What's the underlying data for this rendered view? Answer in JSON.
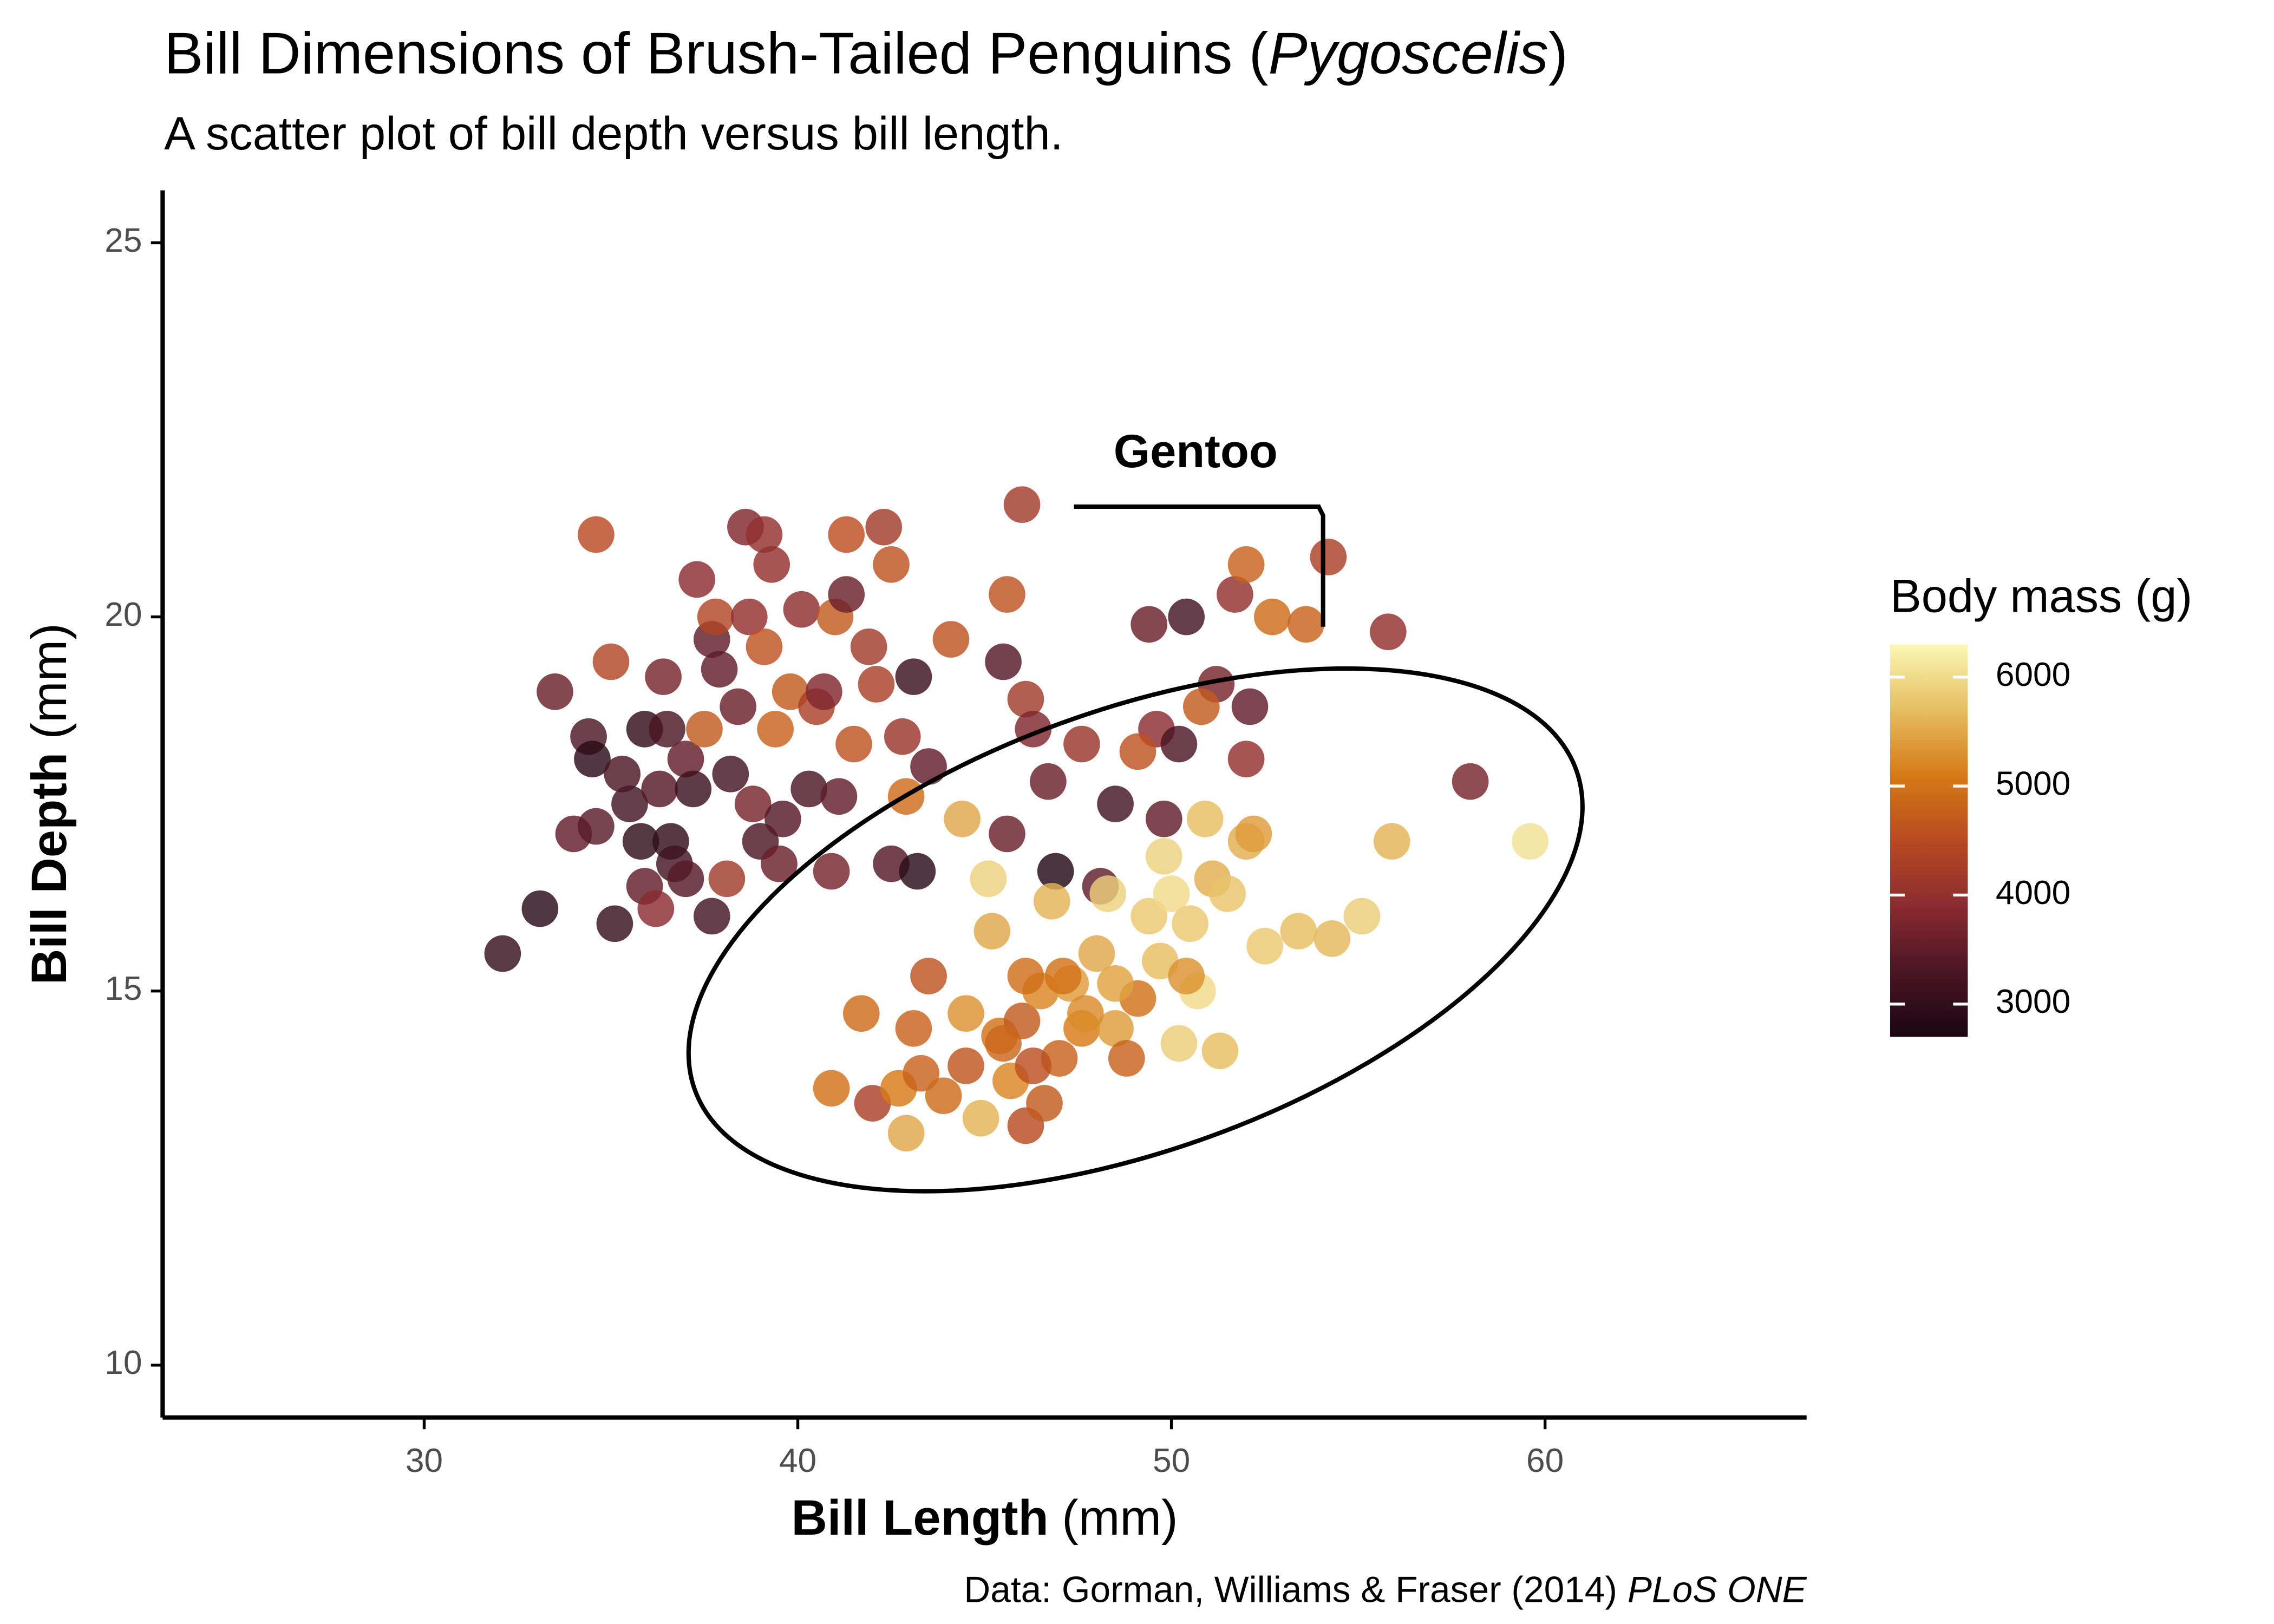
{
  "chart_data": {
    "type": "scatter",
    "title": {
      "text": "Bill Dimensions of Brush-Tailed Penguins (",
      "italic": "Pygoscelis",
      "end": ")"
    },
    "subtitle": "A scatter plot of bill depth versus bill length.",
    "x_label": {
      "bold": "Bill Length",
      "normal": "(mm)"
    },
    "y_label": {
      "bold": "Bill Depth",
      "normal": "(mm)"
    },
    "caption": {
      "text": "Data: Gorman, Williams & Fraser (2014)",
      "italic": "PLoS ONE"
    },
    "annotation": "Gentoo",
    "xlim": [
      23,
      67
    ],
    "ylim": [
      9.3,
      25.7
    ],
    "xticks": [
      30,
      40,
      50,
      60
    ],
    "yticks": [
      10,
      15,
      20,
      25
    ],
    "color_scale": {
      "title": "Body mass (g)",
      "lim": [
        2700,
        6300
      ],
      "ticks": [
        3000,
        4000,
        5000,
        6000
      ],
      "colors": [
        "#1a0610",
        "#4a1525",
        "#8a2b30",
        "#b84a22",
        "#d77a16",
        "#e6be62",
        "#fbf8b4"
      ]
    },
    "x": [
      32.1,
      33.1,
      33.5,
      34.6,
      34.0,
      34.6,
      34.4,
      34.5,
      35.0,
      35.1,
      35.5,
      35.3,
      35.9,
      35.8,
      35.9,
      36.2,
      36.3,
      36.4,
      36.5,
      36.6,
      36.7,
      37.0,
      37.0,
      37.2,
      37.3,
      37.5,
      37.7,
      37.7,
      37.8,
      37.9,
      38.1,
      38.2,
      38.4,
      38.6,
      38.7,
      38.8,
      39.0,
      39.1,
      39.1,
      39.3,
      39.4,
      39.6,
      39.5,
      39.8,
      40.1,
      40.3,
      40.5,
      40.7,
      40.9,
      41.0,
      41.1,
      41.3,
      41.3,
      41.5,
      41.9,
      42.1,
      42.3,
      42.5,
      42.5,
      42.8,
      42.9,
      43.1,
      43.2,
      43.5,
      44.1,
      45.5,
      45.6,
      46.0,
      46.1,
      46.3,
      45.6,
      46.7,
      46.9,
      47.6,
      48.1,
      48.5,
      49.4,
      49.8,
      50.4,
      51.2,
      51.7,
      52.0,
      52.7,
      53.6,
      54.2,
      55.8,
      58.0,
      49.6,
      50.2,
      50.8,
      49.1,
      52.1,
      52.0,
      40.9,
      41.7,
      42.0,
      42.7,
      42.9,
      43.1,
      43.3,
      43.5,
      43.9,
      44.4,
      44.5,
      44.9,
      45.1,
      45.2,
      45.4,
      45.7,
      46.0,
      46.1,
      46.5,
      46.6,
      46.8,
      47.0,
      47.3,
      47.6,
      48.0,
      48.3,
      48.5,
      48.8,
      49.1,
      49.4,
      49.7,
      49.8,
      50.0,
      50.2,
      50.5,
      50.7,
      50.9,
      51.1,
      51.3,
      51.5,
      52.0,
      52.2,
      52.5,
      53.4,
      54.3,
      55.1,
      55.9,
      59.6,
      46.1,
      47.1,
      47.7,
      44.5,
      45.5,
      46.3,
      50.4,
      48.5
    ],
    "y": [
      15.5,
      16.1,
      19.0,
      21.1,
      17.1,
      17.2,
      18.4,
      18.1,
      19.4,
      15.9,
      17.5,
      17.9,
      18.5,
      17.0,
      16.4,
      16.1,
      17.7,
      19.2,
      18.5,
      17.0,
      16.7,
      16.5,
      18.1,
      17.7,
      20.5,
      18.5,
      19.7,
      16.0,
      20.0,
      19.3,
      16.5,
      17.9,
      18.8,
      21.2,
      20.0,
      17.5,
      17.0,
      21.1,
      19.6,
      20.7,
      18.5,
      17.3,
      16.7,
      19.0,
      20.1,
      17.7,
      18.8,
      19.0,
      16.6,
      20.0,
      17.6,
      20.3,
      21.1,
      18.3,
      19.6,
      19.1,
      21.2,
      20.7,
      16.7,
      18.4,
      17.6,
      19.2,
      16.6,
      18.0,
      19.7,
      19.4,
      20.3,
      21.5,
      18.9,
      18.5,
      17.1,
      17.8,
      16.6,
      18.3,
      16.4,
      17.5,
      19.9,
      17.3,
      20.0,
      19.1,
      20.3,
      20.7,
      20.0,
      19.9,
      20.8,
      19.8,
      17.8,
      18.5,
      18.3,
      18.8,
      18.2,
      18.8,
      18.1,
      13.7,
      14.7,
      13.5,
      13.7,
      13.1,
      14.5,
      13.9,
      15.2,
      13.6,
      17.3,
      14.7,
      13.3,
      16.5,
      15.8,
      14.4,
      13.8,
      14.6,
      13.2,
      15.0,
      13.5,
      16.2,
      14.1,
      15.1,
      14.5,
      15.5,
      16.3,
      14.5,
      14.1,
      14.9,
      16.0,
      15.4,
      16.8,
      16.3,
      14.3,
      15.9,
      15.0,
      17.3,
      16.5,
      14.2,
      16.3,
      17.0,
      17.1,
      15.6,
      15.8,
      15.7,
      16.0,
      17.0,
      17.0,
      15.2,
      15.2,
      14.7,
      14.0,
      14.3,
      14.0,
      15.2,
      15.1
    ],
    "body_mass": [
      3050,
      2900,
      3600,
      4500,
      3500,
      3450,
      3300,
      2900,
      4400,
      3050,
      3200,
      3300,
      3000,
      2950,
      3500,
      3900,
      3400,
      3700,
      3300,
      3000,
      3200,
      3400,
      3500,
      3100,
      3900,
      4700,
      3500,
      3200,
      4400,
      3500,
      4200,
      3200,
      3600,
      3800,
      4000,
      3700,
      3300,
      4000,
      4600,
      4000,
      4800,
      3400,
      3600,
      4700,
      3950,
      3300,
      4300,
      3800,
      3700,
      4700,
      3500,
      3600,
      4550,
      4600,
      4200,
      4300,
      4200,
      4600,
      3400,
      4100,
      4900,
      3100,
      2900,
      3500,
      4600,
      3400,
      4600,
      4200,
      4200,
      3800,
      3600,
      3600,
      2800,
      4100,
      3500,
      3200,
      3600,
      3500,
      3200,
      3700,
      4000,
      4800,
      4900,
      4800,
      4300,
      4000,
      3700,
      3900,
      3300,
      4700,
      4600,
      3500,
      4000,
      5000,
      4900,
      4300,
      5100,
      5500,
      4800,
      4800,
      4600,
      4900,
      5500,
      5300,
      5600,
      5900,
      5500,
      5000,
      5200,
      4700,
      4500,
      5200,
      4700,
      5600,
      4800,
      5400,
      5100,
      5500,
      5900,
      5400,
      4800,
      5000,
      5800,
      5700,
      5900,
      6000,
      5850,
      5800,
      6000,
      5700,
      5550,
      5700,
      5750,
      5550,
      5400,
      5800,
      5700,
      5650,
      5850,
      5600,
      6050,
      4950,
      5000,
      5250,
      4650,
      4850,
      4550,
      5300,
      5450
    ]
  }
}
